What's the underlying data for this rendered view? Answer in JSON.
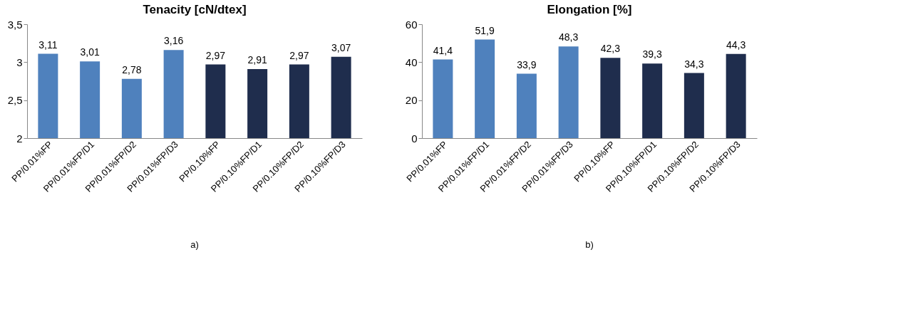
{
  "chart_data": [
    {
      "type": "bar",
      "title": "Tenacity [cN/dtex]",
      "categories": [
        "PP/0.01%FP",
        "PP/0.01%FP/D1",
        "PP/0.01%FP/D2",
        "PP/0.01%FP/D3",
        "PP/0.10%FP",
        "PP/0.10%FP/D1",
        "PP/0.10%FP/D2",
        "PP/0.10%FP/D3"
      ],
      "values": [
        3.11,
        3.01,
        2.78,
        3.16,
        2.97,
        2.91,
        2.97,
        3.07
      ],
      "value_labels": [
        "3,11",
        "3,01",
        "2,78",
        "3,16",
        "2,97",
        "2,91",
        "2,97",
        "3,07"
      ],
      "colors": [
        "#4f81bd",
        "#4f81bd",
        "#4f81bd",
        "#4f81bd",
        "#1f2d4d",
        "#1f2d4d",
        "#1f2d4d",
        "#1f2d4d"
      ],
      "ylim": [
        2,
        3.5
      ],
      "yticks": [
        {
          "value": 2,
          "label": "2"
        },
        {
          "value": 2.5,
          "label": "2,5"
        },
        {
          "value": 3,
          "label": "3"
        },
        {
          "value": 3.5,
          "label": "3,5"
        }
      ],
      "grid": false,
      "annotations": [
        "a)"
      ]
    },
    {
      "type": "bar",
      "title": "Elongation [%]",
      "categories": [
        "PP/0.01%FP",
        "PP/0.01%FP/D1",
        "PP/0.01%FP/D2",
        "PP/0.01%FP/D3",
        "PP/0.10%FP",
        "PP/0.10%FP/D1",
        "PP/0.10%FP/D2",
        "PP/0.10%FP/D3"
      ],
      "values": [
        41.4,
        51.9,
        33.9,
        48.3,
        42.3,
        39.3,
        34.3,
        44.3
      ],
      "value_labels": [
        "41,4",
        "51,9",
        "33,9",
        "48,3",
        "42,3",
        "39,3",
        "34,3",
        "44,3"
      ],
      "colors": [
        "#4f81bd",
        "#4f81bd",
        "#4f81bd",
        "#4f81bd",
        "#1f2d4d",
        "#1f2d4d",
        "#1f2d4d",
        "#1f2d4d"
      ],
      "ylim": [
        0,
        60
      ],
      "yticks": [
        0,
        20,
        40,
        60
      ],
      "grid": false,
      "annotations": [
        "b)"
      ]
    }
  ]
}
